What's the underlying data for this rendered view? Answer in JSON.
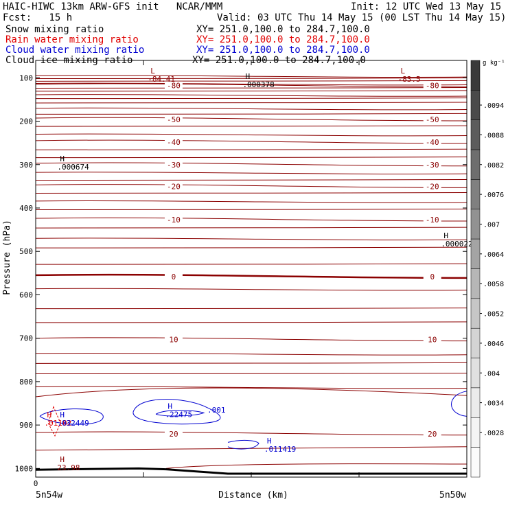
{
  "header": {
    "left1": "HAIC-HIWC 13km ARW-GFS init   NCAR/MMM",
    "right1": "Init: 12 UTC Wed 13 May 15",
    "left2": "Fcst:   15 h",
    "right2": "Valid: 03 UTC Thu 14 May 15 (00 LST Thu 14 May 15)",
    "fields": [
      {
        "name": "Snow mixing ratio",
        "xy": "XY= 251.0,100.0 to 284.7,100.0",
        "color": "#000000"
      },
      {
        "name": "Rain water mixing ratio",
        "xy": "XY= 251.0,100.0 to 284.7,100.0",
        "color": "#e00000"
      },
      {
        "name": "Cloud water mixing ratio",
        "xy": "XY= 251.0,100.0 to 284.7,100.0",
        "color": "#0000d0"
      },
      {
        "name": "Cloud ice mixing ratio",
        "xy": "XY= 251.0,100.0 to 284.7,100.0",
        "color": "#000000"
      }
    ]
  },
  "chart_data": {
    "type": "contour-cross-section",
    "ylabel": "Pressure (hPa)",
    "xlabel": "Distance (km)",
    "x_start_label": "5n54w",
    "x_end_label": "5n50w",
    "x_origin_tick": "0",
    "ylim": [
      1020,
      60
    ],
    "y_ticks": [
      100,
      200,
      300,
      400,
      500,
      600,
      700,
      800,
      900,
      1000
    ],
    "x_tick_count": 5,
    "grid": false,
    "colorbar": {
      "unit": "g kg⁻¹",
      "labels": [
        ".0094",
        ".0088",
        ".0082",
        ".0076",
        ".007",
        ".0064",
        ".0058",
        ".0052",
        ".0046",
        ".004",
        ".0034",
        ".0028"
      ]
    },
    "temperature_contours": [
      {
        "label": "-80",
        "p": 118
      },
      {
        "label": "-50",
        "p": 196
      },
      {
        "label": "-40",
        "p": 248
      },
      {
        "label": "-30",
        "p": 300
      },
      {
        "label": "-20",
        "p": 350
      },
      {
        "label": "-10",
        "p": 427
      },
      {
        "label": "0",
        "p": 558
      },
      {
        "label": "10",
        "p": 703
      },
      {
        "label": "20",
        "p": 920
      }
    ],
    "extrema": [
      {
        "type": "L",
        "value": "-84.41",
        "x": 0.26,
        "p": 103,
        "color": "#8b0000"
      },
      {
        "type": "L",
        "value": "-83.5",
        "x": 0.84,
        "p": 103,
        "color": "#8b0000"
      },
      {
        "type": "H",
        "value": ".000378",
        "x": 0.48,
        "p": 115,
        "color": "#000000"
      },
      {
        "type": "H",
        "value": ".000674",
        "x": 0.05,
        "p": 305,
        "color": "#000000"
      },
      {
        "type": "H",
        "value": ".000022",
        "x": 0.94,
        "p": 482,
        "color": "#000000"
      },
      {
        "type": "H",
        "value": ".22475",
        "x": 0.3,
        "p": 875,
        "color": "#0000d0"
      },
      {
        "type": "H",
        "value": ".011419",
        "x": 0.53,
        "p": 955,
        "color": "#0000d0"
      },
      {
        "type": "H",
        "value": ".01102",
        "x": 0.02,
        "p": 895,
        "color": "#e00000"
      },
      {
        "type": "H",
        "value": ".032449",
        "x": 0.05,
        "p": 895,
        "color": "#0000d0"
      },
      {
        "type": "H",
        "value": "23.98",
        "x": 0.05,
        "p": 998,
        "color": "#8b0000"
      }
    ],
    "cloud_water_labels": [
      ".001"
    ]
  }
}
